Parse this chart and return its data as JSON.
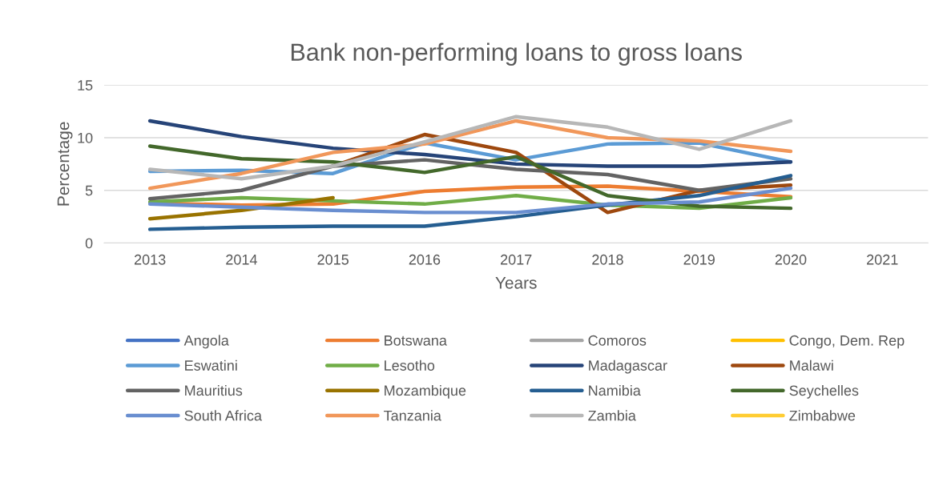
{
  "chart_data": {
    "type": "line",
    "title": "Bank non-performing loans to gross loans",
    "xlabel": "Years",
    "ylabel": "Percentage",
    "categories": [
      "2013",
      "2014",
      "2015",
      "2016",
      "2017",
      "2018",
      "2019",
      "2020",
      "2021"
    ],
    "ylim": [
      0,
      15
    ],
    "yticks": [
      0,
      5,
      10,
      15
    ],
    "grid": "y",
    "legend": "bottom",
    "marker": "none",
    "line_style": "solid",
    "series": [
      {
        "name": "Angola",
        "color": "#4472c4",
        "values": [
          null,
          null,
          null,
          null,
          null,
          null,
          null,
          null,
          null
        ]
      },
      {
        "name": "Botswana",
        "color": "#ed7d31",
        "values": [
          3.8,
          3.6,
          3.7,
          4.9,
          5.3,
          5.4,
          4.9,
          4.4,
          null
        ]
      },
      {
        "name": "Comoros",
        "color": "#a5a5a5",
        "values": [
          null,
          null,
          null,
          null,
          null,
          null,
          null,
          null,
          null
        ]
      },
      {
        "name": "Congo, Dem. Rep",
        "color": "#ffc000",
        "values": [
          null,
          null,
          null,
          null,
          null,
          null,
          null,
          null,
          null
        ]
      },
      {
        "name": "Eswatini",
        "color": "#5b9bd5",
        "values": [
          6.8,
          6.9,
          6.6,
          9.5,
          7.9,
          9.4,
          9.5,
          7.7,
          null
        ]
      },
      {
        "name": "Lesotho",
        "color": "#70ad47",
        "values": [
          3.9,
          4.3,
          4.0,
          3.7,
          4.5,
          3.6,
          3.3,
          4.3,
          null
        ]
      },
      {
        "name": "Madagascar",
        "color": "#264478",
        "values": [
          11.6,
          10.1,
          9.0,
          8.4,
          7.5,
          7.3,
          7.3,
          7.7,
          null
        ]
      },
      {
        "name": "Malawi",
        "color": "#9e480e",
        "values": [
          null,
          null,
          7.3,
          10.3,
          8.6,
          2.9,
          5.0,
          5.5,
          null
        ]
      },
      {
        "name": "Mauritius",
        "color": "#636363",
        "values": [
          4.2,
          5.0,
          7.3,
          7.9,
          7.0,
          6.5,
          5.0,
          6.1,
          null
        ]
      },
      {
        "name": "Mozambique",
        "color": "#997300",
        "values": [
          2.3,
          3.1,
          4.3,
          null,
          null,
          null,
          null,
          null,
          null
        ]
      },
      {
        "name": "Namibia",
        "color": "#255e91",
        "values": [
          1.3,
          1.5,
          1.6,
          1.6,
          2.5,
          3.6,
          4.5,
          6.4,
          null
        ]
      },
      {
        "name": "Seychelles",
        "color": "#43682b",
        "values": [
          9.2,
          8.0,
          7.7,
          6.7,
          8.2,
          4.5,
          3.5,
          3.3,
          null
        ]
      },
      {
        "name": "South Africa",
        "color": "#698ed0",
        "values": [
          3.7,
          3.4,
          3.1,
          2.9,
          2.9,
          3.7,
          3.9,
          5.2,
          null
        ]
      },
      {
        "name": "Tanzania",
        "color": "#f1975a",
        "values": [
          5.2,
          6.6,
          8.6,
          9.4,
          11.6,
          10.0,
          9.7,
          8.7,
          null
        ]
      },
      {
        "name": "Zambia",
        "color": "#b7b7b7",
        "values": [
          7.0,
          6.1,
          7.3,
          9.6,
          12.0,
          11.0,
          8.9,
          11.6,
          null
        ]
      },
      {
        "name": "Zimbabwe",
        "color": "#ffcd33",
        "values": [
          null,
          null,
          null,
          null,
          null,
          null,
          null,
          null,
          null
        ]
      }
    ]
  }
}
